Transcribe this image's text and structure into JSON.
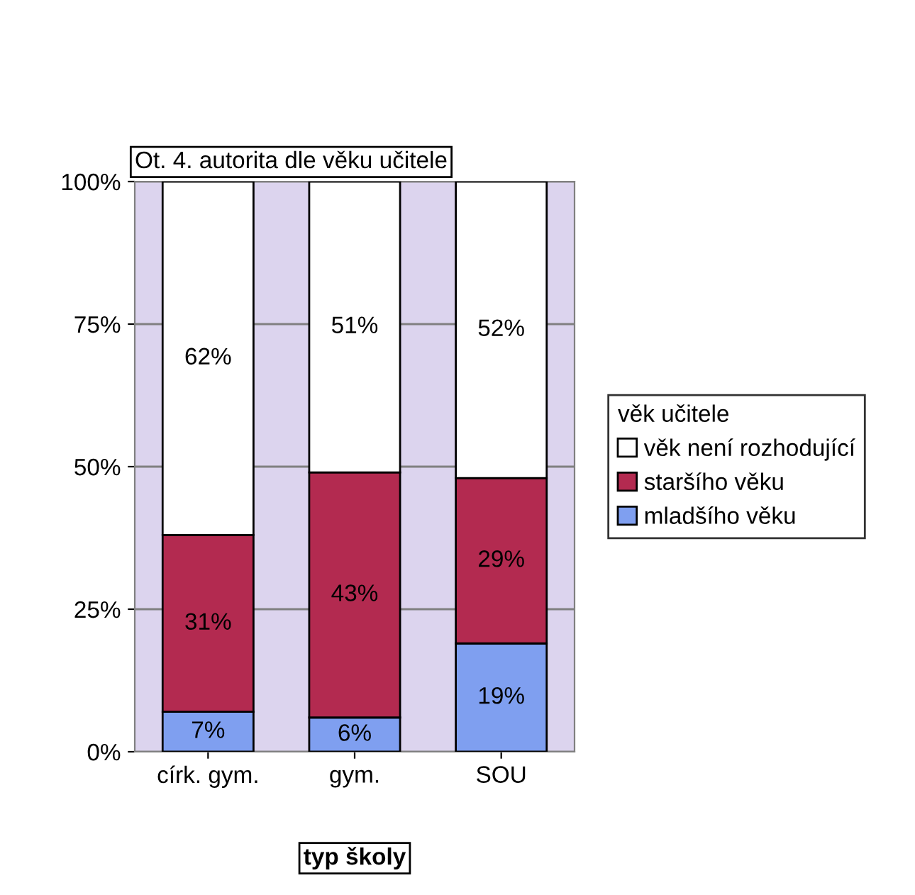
{
  "chart_data": {
    "type": "bar",
    "stacked": true,
    "title": "Ot. 4. autorita dle věku učitele",
    "xlabel": "typ školy",
    "legend_title": "věk učitele",
    "categories": [
      "círk. gym.",
      "gym.",
      "SOU"
    ],
    "series": [
      {
        "name": "mladšího věku",
        "color": "#7f9ff0",
        "values": [
          7,
          6,
          19
        ],
        "value_labels": [
          "7%",
          "6%",
          "19%"
        ]
      },
      {
        "name": "staršího věku",
        "color": "#b32a50",
        "values": [
          31,
          43,
          29
        ],
        "value_labels": [
          "31%",
          "43%",
          "29%"
        ]
      },
      {
        "name": "věk není rozhodující",
        "color": "#ffffff",
        "values": [
          62,
          51,
          52
        ],
        "value_labels": [
          "62%",
          "51%",
          "52%"
        ]
      }
    ],
    "ylim": [
      0,
      100
    ],
    "yticks": [
      {
        "value": 0,
        "label": "0%"
      },
      {
        "value": 25,
        "label": "25%"
      },
      {
        "value": 50,
        "label": "50%"
      },
      {
        "value": 75,
        "label": "75%"
      },
      {
        "value": 100,
        "label": "100%"
      }
    ],
    "grid": "y",
    "legend": "right"
  }
}
